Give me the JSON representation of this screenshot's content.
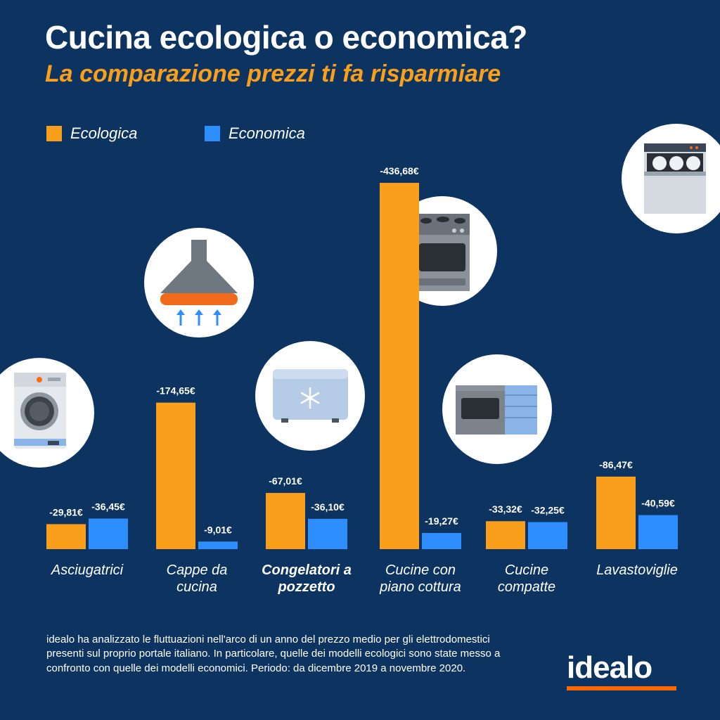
{
  "title": "Cucina ecologica o economica?",
  "subtitle": "La comparazione prezzi ti fa risparmiare",
  "footnote": "idealo ha analizzato le fluttuazioni nell'arco di un anno del prezzo medio per gli elettrodomestici presenti sul proprio portale italiano. In particolare, quelle dei modelli ecologici sono state messo a confronto con quelle dei modelli economici. Periodo: da dicembre 2019 a novembre 2020.",
  "logo": "idealo",
  "colors": {
    "background": "#0d3460",
    "ecologica": "#f99f1b",
    "economica": "#2e8eff",
    "logo_bar": "#ff6600"
  },
  "chart_data": {
    "type": "bar",
    "title": "Cucina ecologica o economica?",
    "subtitle": "La comparazione prezzi ti fa risparmiare",
    "legend_position": "top-left",
    "grid": false,
    "categories": [
      "Asciugatrici",
      "Cappe da cucina",
      "Congelatori a pozzetto",
      "Cucine con piano cottura",
      "Cucine compatte",
      "Lavastoviglie"
    ],
    "category_lines": [
      [
        "Asciugatrici"
      ],
      [
        "Cappe da",
        "cucina"
      ],
      [
        "Congelatori a",
        "pozzetto"
      ],
      [
        "Cucine con",
        "piano cottura"
      ],
      [
        "Cucine",
        "compatte"
      ],
      [
        "Lavastoviglie"
      ]
    ],
    "series": [
      {
        "name": "Ecologica",
        "values": [
          -29.81,
          -174.65,
          -67.01,
          -436.68,
          -33.32,
          -86.47
        ],
        "labels": [
          "-29,81€",
          "-174,65€",
          "-67,01€",
          "-436,68€",
          "-33,32€",
          "-86,47€"
        ]
      },
      {
        "name": "Economica",
        "values": [
          -36.45,
          -9.01,
          -36.1,
          -19.27,
          -32.25,
          -40.59
        ],
        "labels": [
          "-36,45€",
          "-9,01€",
          "-36,10€",
          "-19,27€",
          "-32,25€",
          "-40,59€"
        ]
      }
    ],
    "icons": [
      "washing-machine-icon",
      "range-hood-icon",
      "chest-freezer-icon",
      "stove-icon",
      "compact-kitchen-icon",
      "dishwasher-icon"
    ]
  }
}
